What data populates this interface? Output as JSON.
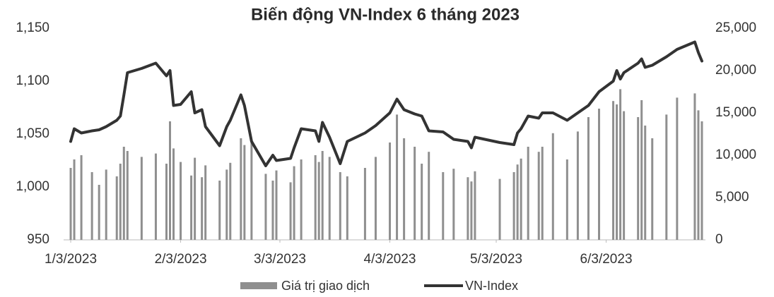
{
  "chart_data": {
    "type": "combo",
    "title": "Biến động VN-Index 6 tháng 2023",
    "x": [
      "2023-01-03",
      "2023-01-04",
      "2023-01-06",
      "2023-01-09",
      "2023-01-11",
      "2023-01-13",
      "2023-01-16",
      "2023-01-17",
      "2023-01-18",
      "2023-01-19",
      "2023-01-23",
      "2023-01-27",
      "2023-01-30",
      "2023-01-31",
      "2023-02-01",
      "2023-02-03",
      "2023-02-06",
      "2023-02-07",
      "2023-02-09",
      "2023-02-10",
      "2023-02-14",
      "2023-02-16",
      "2023-02-17",
      "2023-02-20",
      "2023-02-21",
      "2023-02-23",
      "2023-02-27",
      "2023-03-01",
      "2023-03-02",
      "2023-03-06",
      "2023-03-07",
      "2023-03-09",
      "2023-03-13",
      "2023-03-14",
      "2023-03-15",
      "2023-03-17",
      "2023-03-20",
      "2023-03-22",
      "2023-03-27",
      "2023-03-30",
      "2023-04-03",
      "2023-04-05",
      "2023-04-07",
      "2023-04-10",
      "2023-04-12",
      "2023-04-14",
      "2023-04-18",
      "2023-04-21",
      "2023-04-25",
      "2023-04-26",
      "2023-04-27",
      "2023-05-04",
      "2023-05-08",
      "2023-05-09",
      "2023-05-10",
      "2023-05-12",
      "2023-05-15",
      "2023-05-16",
      "2023-05-19",
      "2023-05-23",
      "2023-05-26",
      "2023-05-29",
      "2023-06-01",
      "2023-06-05",
      "2023-06-06",
      "2023-06-07",
      "2023-06-08",
      "2023-06-12",
      "2023-06-13",
      "2023-06-14",
      "2023-06-16",
      "2023-06-20",
      "2023-06-23",
      "2023-06-28",
      "2023-06-29",
      "2023-06-30"
    ],
    "series": [
      {
        "name": "Giá trị giao dịch",
        "type": "bar",
        "axis": "y2",
        "color": "#8f8f8f",
        "values": [
          8500,
          9500,
          10000,
          8000,
          6500,
          8300,
          7500,
          9000,
          11000,
          10500,
          9800,
          10200,
          9000,
          14000,
          10800,
          9200,
          7600,
          9700,
          7400,
          8800,
          7000,
          8300,
          9100,
          12000,
          11200,
          11500,
          7800,
          7000,
          8200,
          6800,
          8700,
          9500,
          10000,
          9200,
          10500,
          9800,
          8000,
          7500,
          8500,
          9800,
          11500,
          14800,
          12000,
          11000,
          9000,
          10400,
          8000,
          8400,
          7400,
          6900,
          8100,
          7200,
          8000,
          8900,
          9600,
          11000,
          10400,
          11000,
          12600,
          9500,
          12800,
          14500,
          15500,
          16400,
          16000,
          17800,
          15200,
          14500,
          16500,
          13500,
          12000,
          14800,
          16800,
          17300,
          15300,
          14000
        ]
      },
      {
        "name": "VN-Index",
        "type": "line",
        "color": "#333333",
        "values": [
          1043,
          1055,
          1051,
          1053,
          1054,
          1057,
          1063,
          1067,
          1087,
          1108,
          1112,
          1117,
          1105,
          1110,
          1077,
          1078,
          1090,
          1070,
          1073,
          1057,
          1039,
          1057,
          1063,
          1087,
          1077,
          1043,
          1020,
          1030,
          1025,
          1027,
          1037,
          1055,
          1053,
          1043,
          1061,
          1047,
          1022,
          1043,
          1051,
          1058,
          1070,
          1083,
          1073,
          1069,
          1067,
          1053,
          1052,
          1045,
          1043,
          1037,
          1047,
          1042,
          1040,
          1051,
          1055,
          1067,
          1065,
          1070,
          1070,
          1063,
          1070,
          1077,
          1090,
          1100,
          1110,
          1102,
          1108,
          1117,
          1121,
          1113,
          1115,
          1123,
          1130,
          1137,
          1127,
          1119
        ]
      }
    ],
    "xlim": [
      "2023-01-01",
      "2023-07-01"
    ],
    "xticks": [
      {
        "value": "2023-01-03",
        "label": "1/3/2023"
      },
      {
        "value": "2023-02-03",
        "label": "2/3/2023"
      },
      {
        "value": "2023-03-03",
        "label": "3/3/2023"
      },
      {
        "value": "2023-04-03",
        "label": "4/3/2023"
      },
      {
        "value": "2023-05-03",
        "label": "5/3/2023"
      },
      {
        "value": "2023-06-03",
        "label": "6/3/2023"
      }
    ],
    "ylim": [
      950,
      1150
    ],
    "yticks": [
      950,
      {
        "value": 1000,
        "label": "1,000"
      },
      {
        "value": 1050,
        "label": "1,050"
      },
      {
        "value": 1100,
        "label": "1,100"
      },
      {
        "value": 1150,
        "label": "1,150"
      }
    ],
    "y2lim": [
      0,
      25000
    ],
    "y2ticks": [
      0,
      {
        "value": 5000,
        "label": "5,000"
      },
      {
        "value": 10000,
        "label": "10,000"
      },
      {
        "value": 15000,
        "label": "15,000"
      },
      {
        "value": 20000,
        "label": "20,000"
      },
      {
        "value": 25000,
        "label": "25,000"
      }
    ],
    "grid": false,
    "legend": "bottom"
  }
}
